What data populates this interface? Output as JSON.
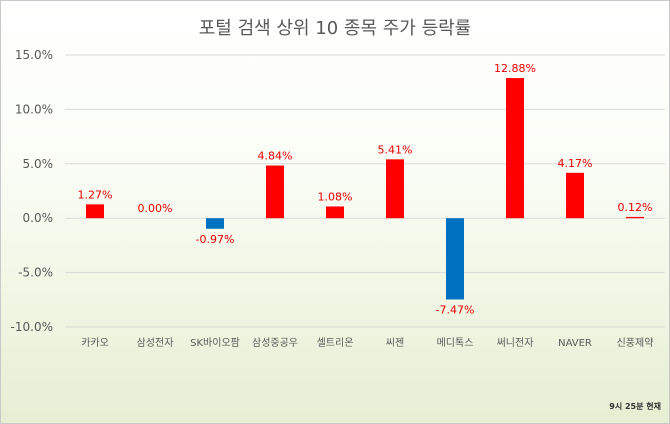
{
  "chart_data": {
    "type": "bar",
    "title": "포털 검색 상위 10 종목 주가 등락률",
    "categories": [
      "카카오",
      "삼성전자",
      "SK바이오팜",
      "삼성중공우",
      "셀트리온",
      "씨젠",
      "메디톡스",
      "써니전자",
      "NAVER",
      "신풍제약"
    ],
    "values": [
      1.27,
      0.0,
      -0.97,
      4.84,
      1.08,
      5.41,
      -7.47,
      12.88,
      4.17,
      0.12
    ],
    "data_labels": [
      "1.27%",
      "0.00%",
      "-0.97%",
      "4.84%",
      "1.08%",
      "5.41%",
      "-7.47%",
      "12.88%",
      "4.17%",
      "0.12%"
    ],
    "yticks": [
      15,
      10,
      5,
      0,
      -5,
      -10
    ],
    "ytick_labels": [
      "15.0%",
      "10.0%",
      "5.0%",
      "0.0%",
      "-5.0%",
      "-10.0%"
    ],
    "ylim": [
      -10,
      15
    ],
    "xlabel": "",
    "ylabel": "",
    "grid": true,
    "colors": {
      "positive": "#ff0000",
      "negative": "#0070c0",
      "label": "#e60000"
    },
    "footnote": "9시 25분 현재"
  }
}
